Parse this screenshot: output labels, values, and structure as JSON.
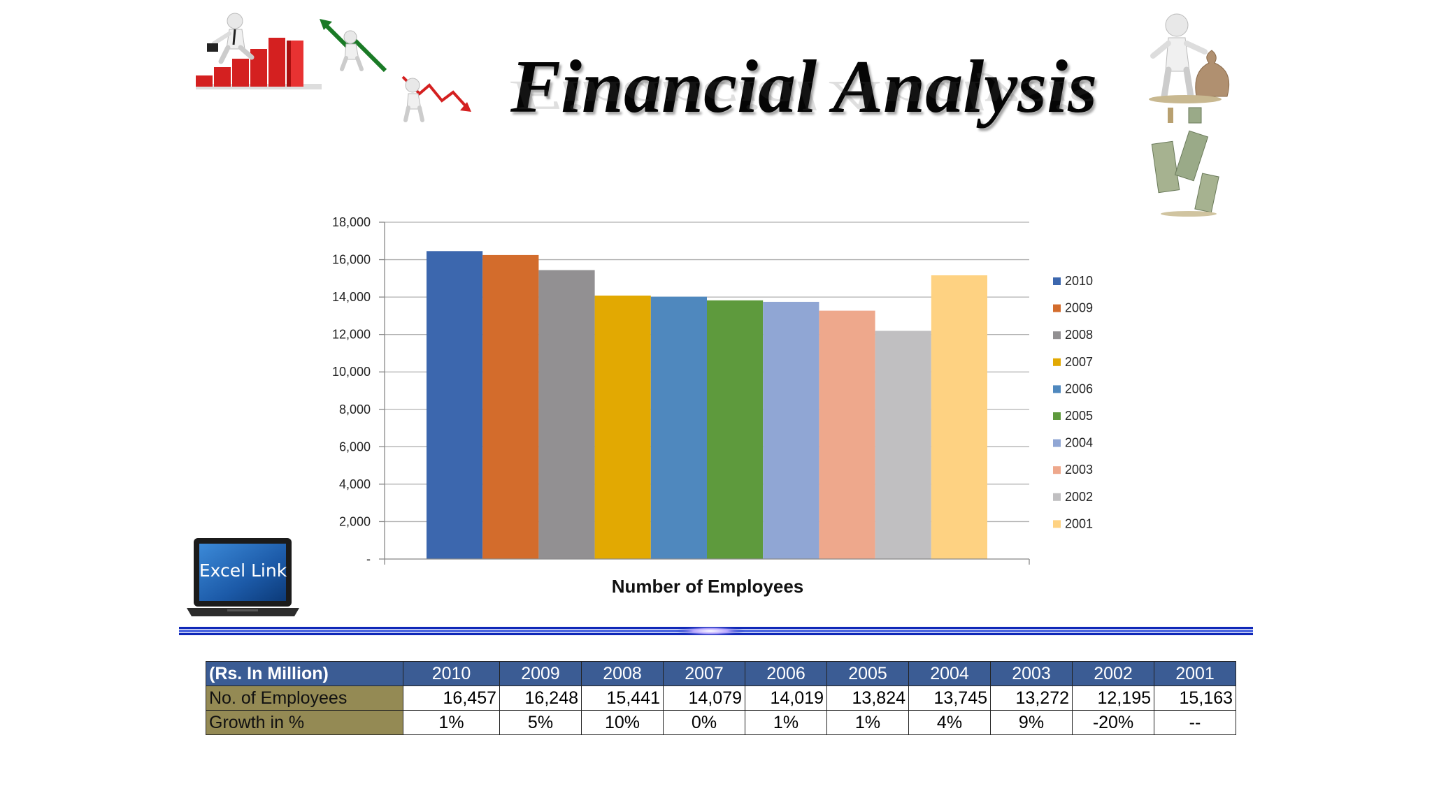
{
  "header": {
    "title": "Financial Analysis"
  },
  "excel_link": {
    "label": "Excel Link"
  },
  "chart_data": {
    "type": "bar",
    "xlabel": "Number of Employees",
    "ylabel": "",
    "ylim": [
      0,
      18000
    ],
    "yticks": [
      0,
      2000,
      4000,
      6000,
      8000,
      10000,
      12000,
      14000,
      16000,
      18000
    ],
    "ytick_labels": [
      "-",
      "2,000",
      "4,000",
      "6,000",
      "8,000",
      "10,000",
      "12,000",
      "14,000",
      "16,000",
      "18,000"
    ],
    "grid": true,
    "legend_position": "right",
    "series": [
      {
        "name": "2010",
        "value": 16457,
        "color": "#3c67ae"
      },
      {
        "name": "2009",
        "value": 16248,
        "color": "#d36c2c"
      },
      {
        "name": "2008",
        "value": 15441,
        "color": "#929092"
      },
      {
        "name": "2007",
        "value": 14079,
        "color": "#e2a902"
      },
      {
        "name": "2006",
        "value": 14019,
        "color": "#4f88be"
      },
      {
        "name": "2005",
        "value": 13824,
        "color": "#5e9a3d"
      },
      {
        "name": "2004",
        "value": 13745,
        "color": "#90a6d4"
      },
      {
        "name": "2003",
        "value": 13272,
        "color": "#eea88c"
      },
      {
        "name": "2002",
        "value": 12195,
        "color": "#c0bfc1"
      },
      {
        "name": "2001",
        "value": 15163,
        "color": "#fed282"
      }
    ]
  },
  "table": {
    "corner": "(Rs. In Million)",
    "columns": [
      "2010",
      "2009",
      "2008",
      "2007",
      "2006",
      "2005",
      "2004",
      "2003",
      "2002",
      "2001"
    ],
    "rows": [
      {
        "label": "No. of Employees",
        "type": "num",
        "values": [
          "16,457",
          "16,248",
          "15,441",
          "14,079",
          "14,019",
          "13,824",
          "13,745",
          "13,272",
          "12,195",
          "15,163"
        ]
      },
      {
        "label": "Growth in %",
        "type": "pct",
        "values": [
          "1%",
          "5%",
          "10%",
          "0%",
          "1%",
          "1%",
          "4%",
          "9%",
          "-20%",
          "--"
        ]
      }
    ]
  },
  "colors": {
    "table_header": "#3b5c94",
    "row_label": "#948a54",
    "divider": "#1028b8"
  },
  "icons": [
    "businessman-climbing-bars-icon",
    "figure-rising-arrow-icon",
    "figure-falling-arrow-icon",
    "figure-with-money-bag-icon",
    "falling-banknotes-icon",
    "laptop-icon"
  ]
}
